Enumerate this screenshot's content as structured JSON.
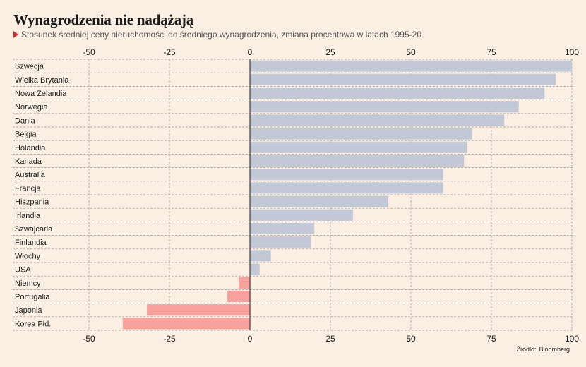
{
  "title": "Wynagrodzenia nie nadążają",
  "subtitle": "Stosunek średniej ceny nieruchomości do średniego wynagrodzenia, zmiana procentowa w latach 1995-20",
  "source": {
    "label": "Źródło:",
    "value": "Bloomberg"
  },
  "colors": {
    "positive": "#c3c8d6",
    "negative": "#f7a09e",
    "grid": "#9a9a9a",
    "zero_line": "#222222",
    "text": "#1a1a1a",
    "accent": "#e02b2b"
  },
  "chart_data": {
    "type": "bar",
    "orientation": "horizontal",
    "categories": [
      "Szwecja",
      "Wielka Brytania",
      "Nowa Zelandia",
      "Norwegia",
      "Dania",
      "Belgia",
      "Holandia",
      "Kanada",
      "Australia",
      "Francja",
      "Hiszpania",
      "Irlandia",
      "Szwajcaria",
      "Finlandia",
      "Włochy",
      "USA",
      "Niemcy",
      "Portugalia",
      "Japonia",
      "Korea Płd."
    ],
    "values": [
      100,
      95,
      91.5,
      83.5,
      79,
      69,
      67.5,
      66.5,
      60,
      60,
      43,
      32,
      20,
      19,
      6.5,
      3,
      -3.5,
      -7,
      -32,
      -39.5
    ],
    "xlim": [
      -50,
      100
    ],
    "xticks": [
      "-50",
      "-25",
      "0",
      "25",
      "50",
      "75",
      "100"
    ],
    "grid": true,
    "xlabel": "",
    "ylabel": ""
  }
}
